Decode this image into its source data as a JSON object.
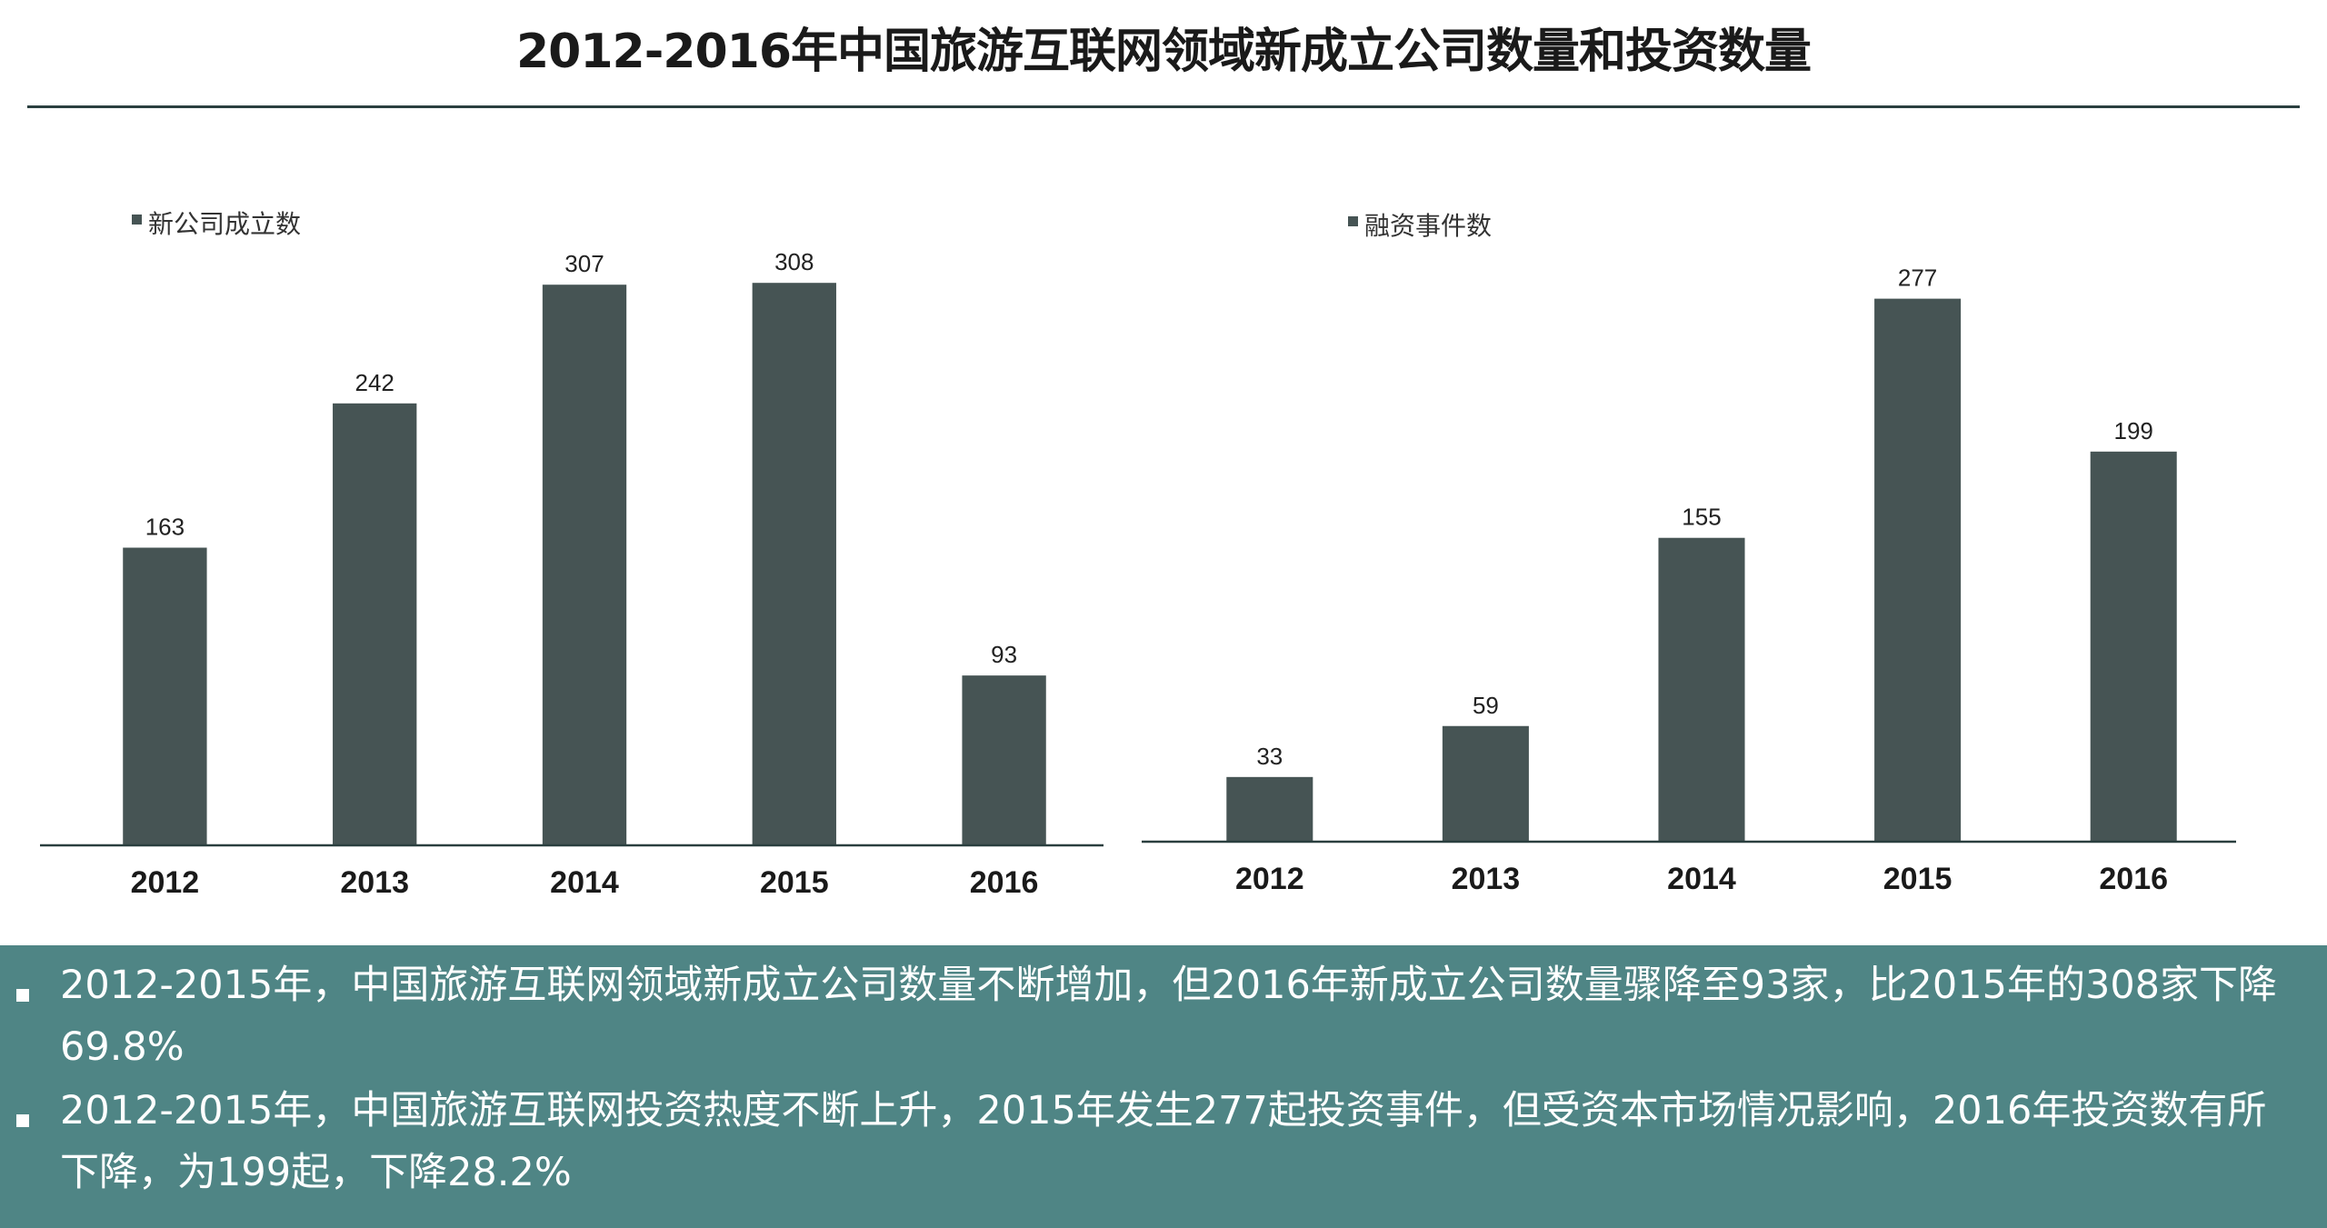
{
  "page": {
    "title": "2012-2016年中国旅游互联网领域新成立公司数量和投资数量"
  },
  "chart_data": [
    {
      "type": "bar",
      "title": "",
      "legend": "新公司成立数",
      "legend_position": "top-left",
      "categories": [
        "2012",
        "2013",
        "2014",
        "2015",
        "2016"
      ],
      "series": [
        {
          "name": "新公司成立数",
          "values": [
            163,
            242,
            307,
            308,
            93
          ]
        }
      ],
      "ylim": [
        0,
        330
      ],
      "bar_color": "#465454",
      "grid": false,
      "data_labels": true
    },
    {
      "type": "bar",
      "title": "",
      "legend": "融资事件数",
      "legend_position": "top-left",
      "categories": [
        "2012",
        "2013",
        "2014",
        "2015",
        "2016"
      ],
      "series": [
        {
          "name": "融资事件数",
          "values": [
            33,
            59,
            155,
            277,
            199
          ]
        }
      ],
      "ylim": [
        0,
        300
      ],
      "bar_color": "#465454",
      "grid": false,
      "data_labels": true
    }
  ],
  "summary": {
    "background_color": "#4f8585",
    "bullets": [
      "2012-2015年，中国旅游互联网领域新成立公司数量不断增加，但2016年新成立公司数量骤降至93家，比2015年的308家下降69.8%",
      "2012-2015年，中国旅游互联网投资热度不断上升，2015年发生277起投资事件，但受资本市场情况影响，2016年投资数有所下降，为199起，下降28.2%"
    ]
  }
}
